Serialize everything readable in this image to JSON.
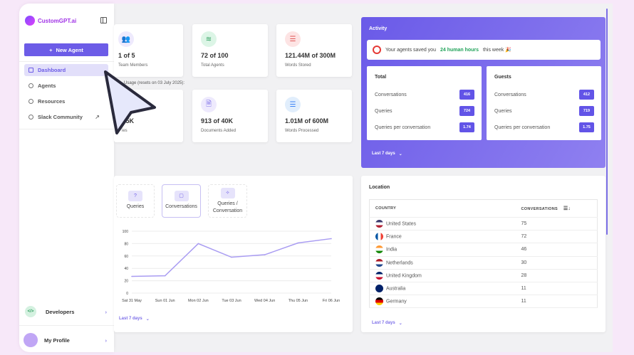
{
  "brand": {
    "name": "CustomGPT.ai"
  },
  "sidebar": {
    "new_agent": "New Agent",
    "items": [
      {
        "label": "Dashboard",
        "active": true
      },
      {
        "label": "Agents"
      },
      {
        "label": "Resources"
      },
      {
        "label": "Slack Community"
      }
    ],
    "developers": "Developers",
    "profile": "My Profile"
  },
  "stats": [
    {
      "value": "1 of 5",
      "label": "Team Members",
      "icon": "users-icon"
    },
    {
      "value": "72 of 100",
      "label": "Total Agents",
      "icon": "layers-icon"
    },
    {
      "value": "121.44M of 300M",
      "label": "Words Stored",
      "icon": "database-icon"
    }
  ],
  "usage_label": "Usage (resets on 03 July 2025):",
  "usage": [
    {
      "value": "f 5K",
      "label": "ies",
      "icon": "query-icon"
    },
    {
      "value": "913 of 40K",
      "label": "Documents Added",
      "icon": "document-search-icon"
    },
    {
      "value": "1.01M of 600M",
      "label": "Words Processed",
      "icon": "database-sync-icon"
    }
  ],
  "activity": {
    "title": "Activity",
    "saved_pre": "Your agents saved you",
    "saved_hours": "24 human hours",
    "saved_post": "this week 🎉",
    "total": {
      "title": "Total",
      "rows": [
        {
          "label": "Conversations",
          "value": "416"
        },
        {
          "label": "Queries",
          "value": "724"
        },
        {
          "label": "Queries per conversation",
          "value": "1.74"
        }
      ]
    },
    "guests": {
      "title": "Guests",
      "rows": [
        {
          "label": "Conversations",
          "value": "412"
        },
        {
          "label": "Queries",
          "value": "719"
        },
        {
          "label": "Queries per conversation",
          "value": "1.75"
        }
      ]
    },
    "range": "Last 7 days"
  },
  "chart_tabs": [
    {
      "label": "Queries",
      "icon": "?"
    },
    {
      "label": "Conversations",
      "icon": "💬"
    },
    {
      "label": "Queries / Conversation",
      "icon": "✧"
    }
  ],
  "chart_data": {
    "type": "line",
    "categories": [
      "Sat 31 May",
      "Sun 01 Jun",
      "Mon 02 Jun",
      "Tue 03 Jun",
      "Wed 04 Jun",
      "Thu 05 Jun",
      "Fri 06 Jun"
    ],
    "values": [
      27,
      28,
      80,
      58,
      62,
      81,
      88
    ],
    "ylim": [
      0,
      100
    ],
    "yticks": [
      0,
      20,
      40,
      60,
      80,
      100
    ],
    "grid": true,
    "color": "#a99cf2"
  },
  "chart_range": "Last 7 days",
  "location": {
    "title": "Location",
    "col_country": "COUNTRY",
    "col_conv": "CONVERSATIONS",
    "rows": [
      {
        "country": "United States",
        "value": "75",
        "colors": [
          "#3c3b6e",
          "#fff",
          "#b22234"
        ]
      },
      {
        "country": "France",
        "value": "72",
        "colors": [
          "#0055a4",
          "#fff",
          "#ef4135"
        ]
      },
      {
        "country": "India",
        "value": "46",
        "colors": [
          "#ff9933",
          "#fff",
          "#138808"
        ]
      },
      {
        "country": "Netherlands",
        "value": "30",
        "colors": [
          "#ae1c28",
          "#fff",
          "#21468b"
        ]
      },
      {
        "country": "United Kingdom",
        "value": "28",
        "colors": [
          "#012169",
          "#fff",
          "#c8102e"
        ]
      },
      {
        "country": "Australia",
        "value": "11",
        "colors": [
          "#012169",
          "#012169",
          "#012169"
        ]
      },
      {
        "country": "Germany",
        "value": "11",
        "colors": [
          "#000",
          "#dd0000",
          "#ffce00"
        ]
      }
    ],
    "range": "Last 7 days"
  }
}
